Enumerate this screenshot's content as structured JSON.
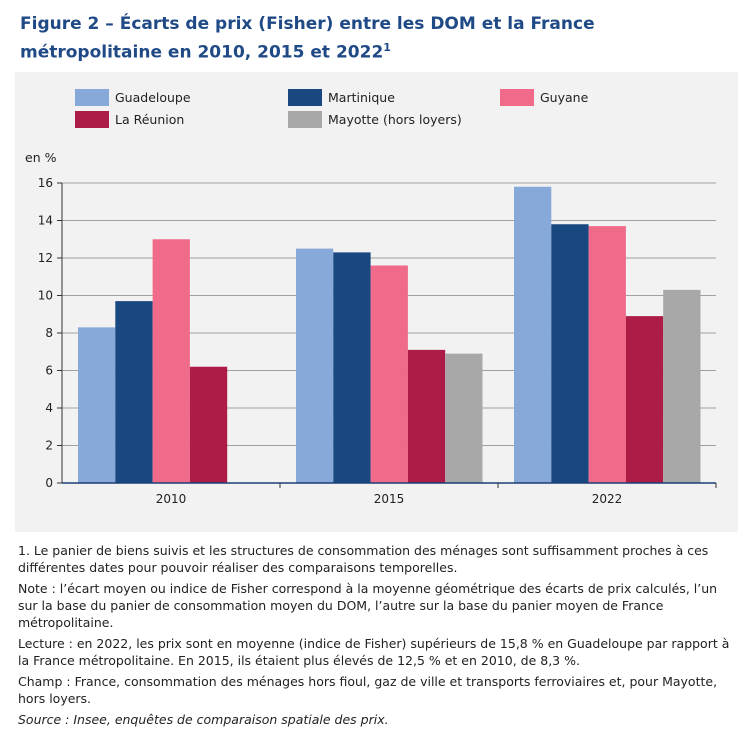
{
  "title": {
    "text": "Figure 2 – Écarts de prix (Fisher) entre les DOM et la France métropolitaine en 2010, 2015 et 2022",
    "footnote_ref": "1"
  },
  "chart_data": {
    "type": "bar",
    "ylabel": "en %",
    "ylim": [
      0,
      16
    ],
    "yticks": [
      0,
      2,
      4,
      6,
      8,
      10,
      12,
      14,
      16
    ],
    "grid": true,
    "legend_position": "top",
    "categories": [
      "2010",
      "2015",
      "2022"
    ],
    "series": [
      {
        "name": "Guadeloupe",
        "color": "#87a9d9",
        "values": [
          8.3,
          12.5,
          15.8
        ]
      },
      {
        "name": "Martinique",
        "color": "#18487f",
        "values": [
          9.7,
          12.3,
          13.8
        ]
      },
      {
        "name": "Guyane",
        "color": "#f06a8a",
        "values": [
          13.0,
          11.6,
          13.7
        ]
      },
      {
        "name": "La Réunion",
        "color": "#ad1c47",
        "values": [
          6.2,
          7.1,
          8.9
        ]
      },
      {
        "name": "Mayotte (hors loyers)",
        "color": "#a8a8a8",
        "values": [
          null,
          6.9,
          10.3
        ]
      }
    ]
  },
  "notes": {
    "footnote_1": "1. Le panier de biens suivis et les structures de consommation des ménages sont suffisamment proches à ces différentes dates pour pouvoir réaliser des comparaisons temporelles.",
    "note": "Note : l’écart moyen ou indice de Fisher correspond à la moyenne géométrique des écarts de prix calculés, l’un sur la base du panier de consommation moyen du DOM, l’autre sur la base du panier moyen de France métropolitaine.",
    "lecture": "Lecture : en 2022, les prix sont en moyenne (indice de Fisher) supérieurs de 15,8 % en Guadeloupe par rapport à la France métropolitaine. En 2015, ils étaient plus élevés de 12,5 % et en 2010, de 8,3 %.",
    "champ": "Champ : France, consommation des ménages hors fioul, gaz de ville et transports ferroviaires et, pour Mayotte, hors loyers.",
    "source": "Source : Insee, enquêtes de comparaison spatiale des prix."
  }
}
